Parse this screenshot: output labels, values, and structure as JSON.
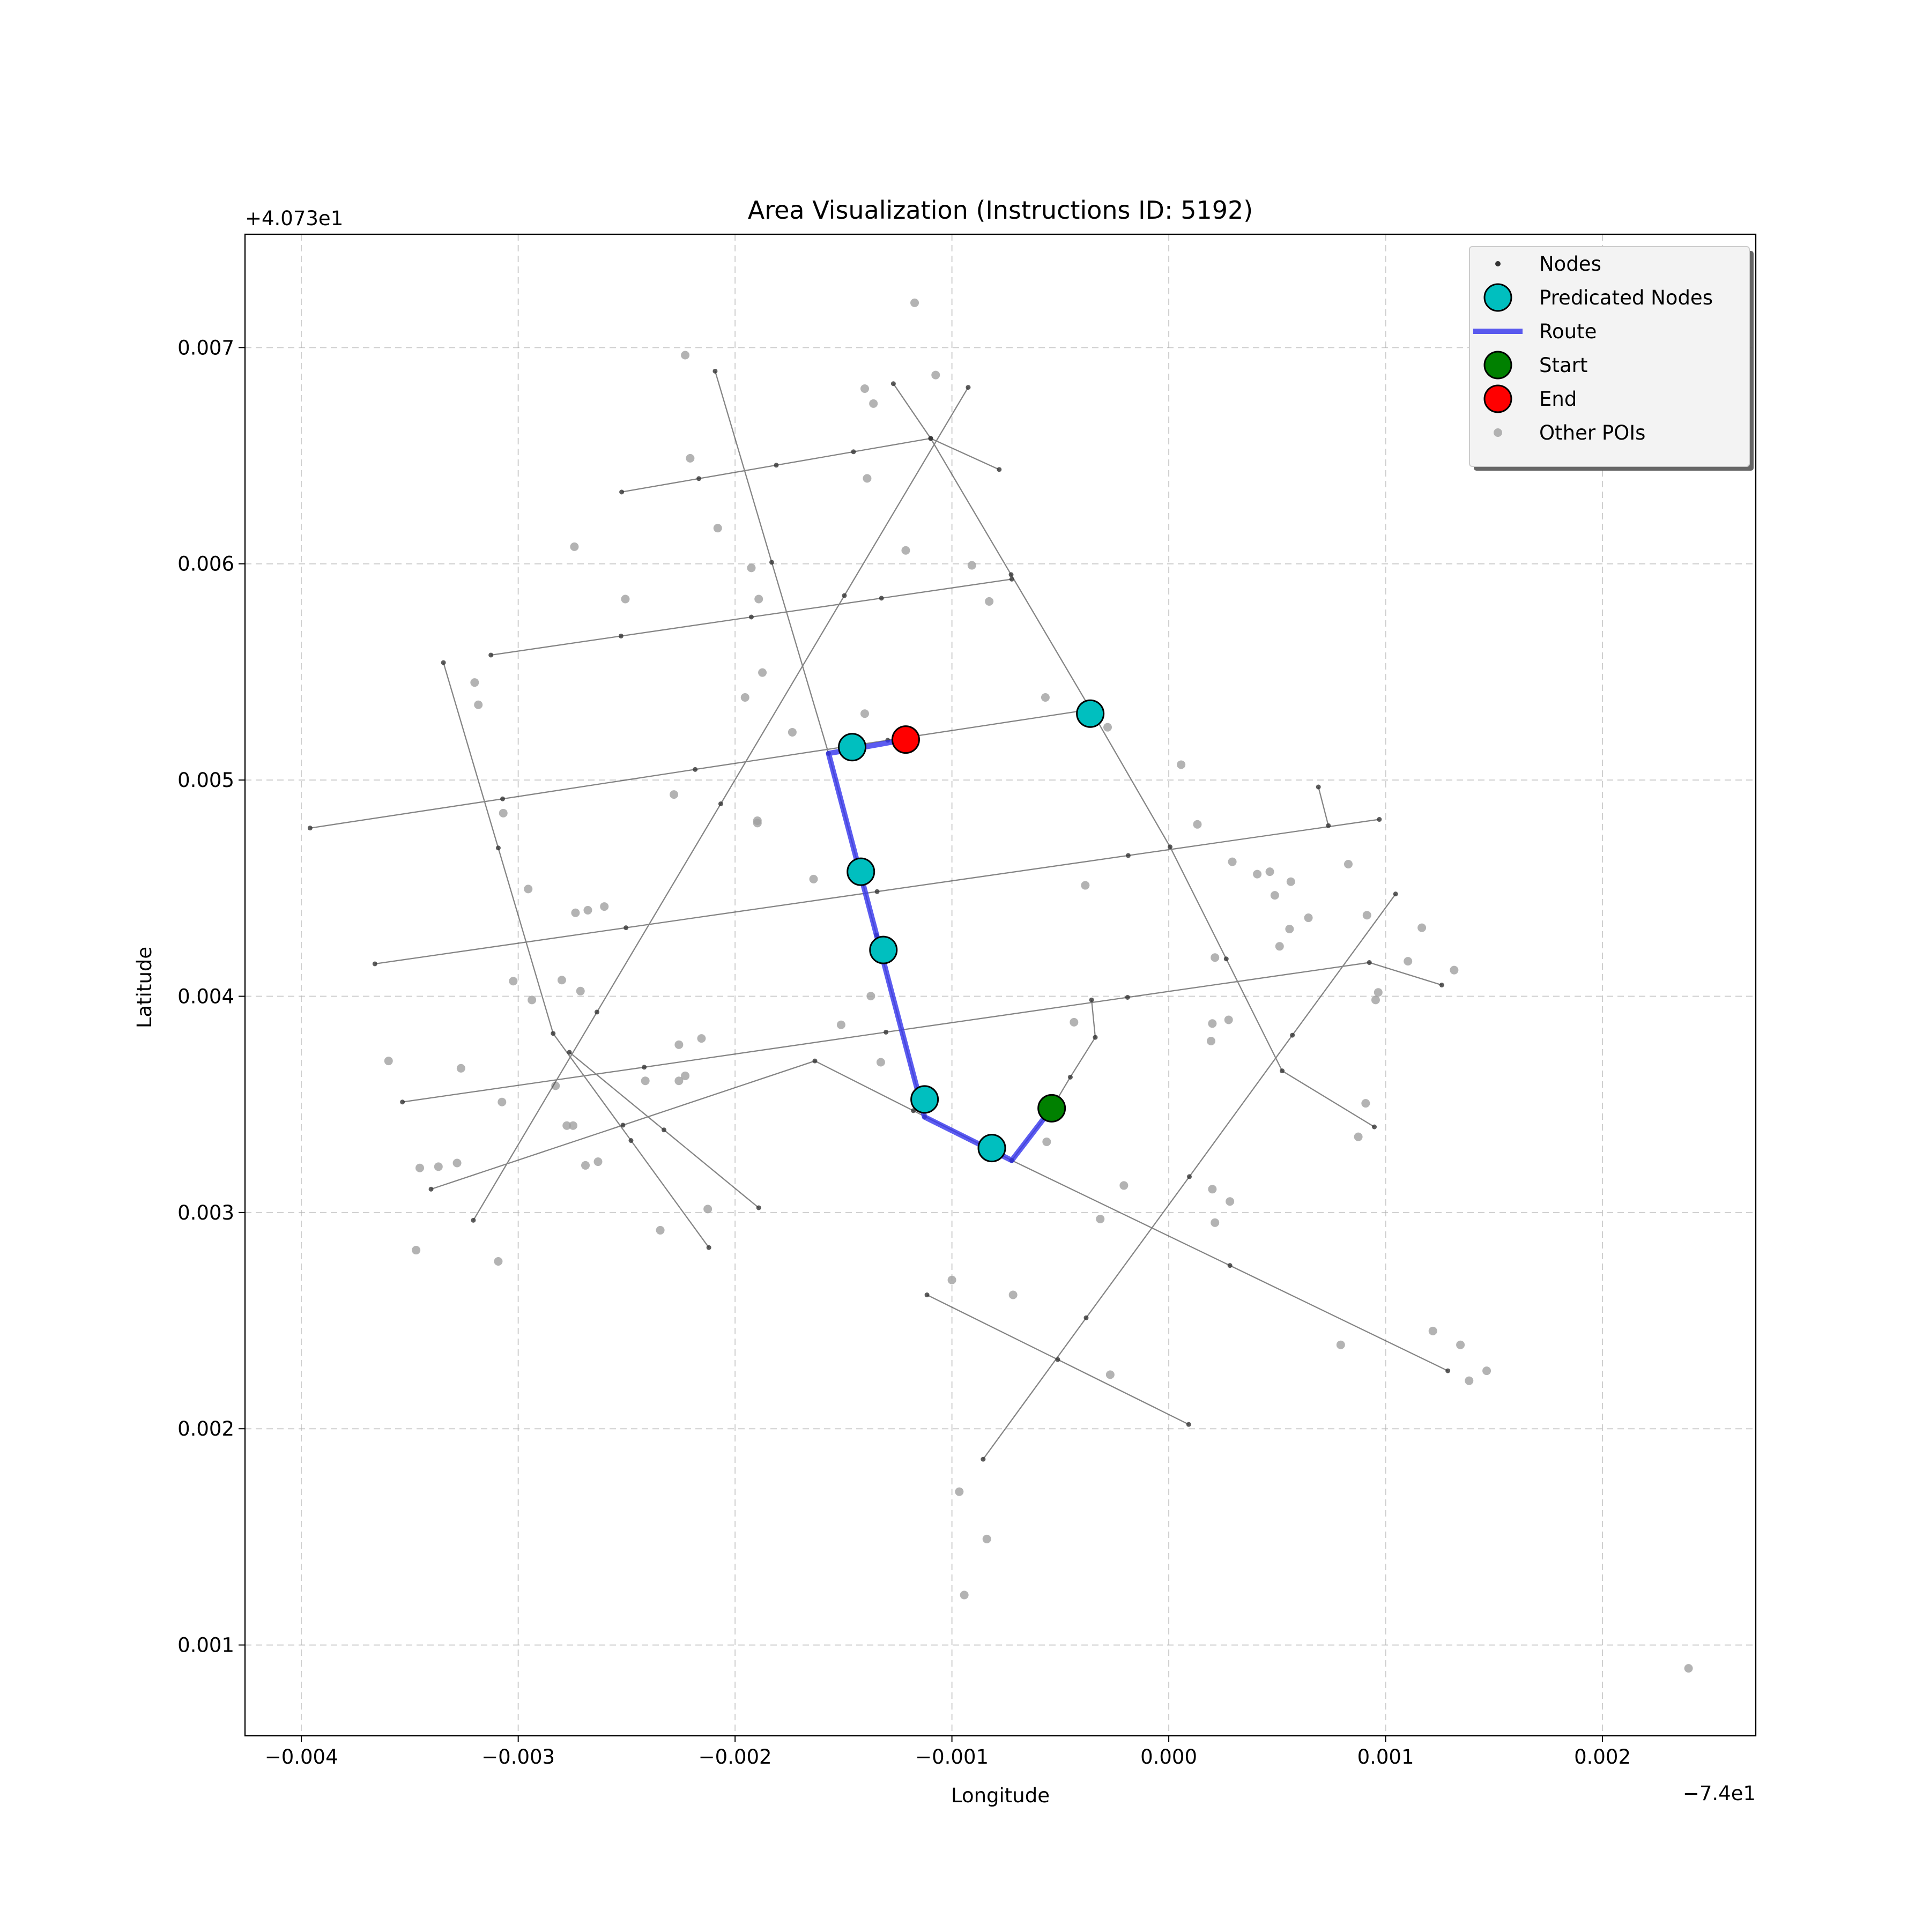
{
  "chart_data": {
    "type": "scatter",
    "title": "Area Visualization (Instructions ID: 5192)",
    "x_label": "Longitude",
    "y_label": "Latitude",
    "x_offset_label": "−7.4e1",
    "y_offset_label": "+4.073e1",
    "xlim": [
      -0.00426,
      0.002707
    ],
    "ylim": [
      0.00058,
      0.007524
    ],
    "xticks": [
      {
        "value": -0.004,
        "label": "−0.004"
      },
      {
        "value": -0.003,
        "label": "−0.003"
      },
      {
        "value": -0.002,
        "label": "−0.002"
      },
      {
        "value": -0.001,
        "label": "−0.001"
      },
      {
        "value": 0,
        "label": "0.000"
      },
      {
        "value": 0.001,
        "label": "0.001"
      },
      {
        "value": 0.002,
        "label": "0.002"
      }
    ],
    "yticks": [
      0.001,
      0.002,
      0.003,
      0.004,
      0.005,
      0.006,
      0.007
    ],
    "grid": true,
    "legend": "upper right",
    "series": [
      {
        "name": "Nodes",
        "style": "network",
        "color": "#333333",
        "x": [
          -0.002523,
          -0.002167,
          -0.00181,
          -0.001454,
          -0.001098,
          -0.000782,
          null,
          -0.003126,
          -0.002526,
          -0.001925,
          -0.001325,
          -0.000724,
          null,
          -0.00396,
          -0.003072,
          -0.002184,
          -0.001296,
          -0.000408,
          null,
          -0.003661,
          -0.002503,
          -0.001345,
          -0.000187,
          0.000971,
          null,
          -0.003534,
          -0.002419,
          -0.001304,
          -0.00019,
          0.000925,
          0.001259,
          null,
          -0.003402,
          -0.002517,
          -0.001632,
          -0.001178,
          -0.000724,
          0.000282,
          0.001287,
          null,
          -0.003207,
          -0.002637,
          -0.002066,
          -0.001496,
          -0.000925,
          null,
          -0.003345,
          -0.003092,
          -0.002839,
          -0.00248,
          -0.002121,
          null,
          -0.002764,
          -0.002328,
          -0.001891,
          null,
          -0.002092,
          -0.001831,
          -0.001569,
          -0.001348,
          -0.001126,
          null,
          -0.00127,
          -0.001098,
          -0.000727,
          -0.000356,
          6e-06,
          0.000265,
          0.000523,
          0.000948,
          null,
          -0.000856,
          -0.000381,
          9.5e-05,
          0.00057,
          0.001046,
          null,
          -0.001115,
          -0.000512,
          9.2e-05,
          null,
          -0.000356,
          -0.000339,
          -0.000454,
          -0.00054,
          -0.000724,
          null,
          0.00069,
          0.000736
        ],
        "y": [
          0.006332,
          0.006394,
          0.006456,
          0.006518,
          0.00658,
          0.006436,
          null,
          0.005578,
          0.005666,
          0.005754,
          0.005841,
          0.005929,
          null,
          0.004778,
          0.004913,
          0.005049,
          0.005184,
          0.005319,
          null,
          0.00415,
          0.004317,
          0.004484,
          0.004651,
          0.004818,
          null,
          0.003511,
          0.003672,
          0.003834,
          0.003995,
          0.004156,
          0.004052,
          null,
          0.003108,
          0.003404,
          0.003701,
          0.003471,
          0.003241,
          0.002755,
          0.002268,
          null,
          0.002964,
          0.003927,
          0.00489,
          0.005853,
          0.006816,
          null,
          0.005543,
          0.004686,
          0.003828,
          0.003333,
          0.002838,
          null,
          0.003741,
          0.003382,
          0.003022,
          null,
          0.006891,
          0.006007,
          0.005123,
          0.004283,
          0.003442,
          null,
          0.006833,
          0.00658,
          0.00595,
          0.005319,
          0.004691,
          0.004173,
          0.003655,
          0.003396,
          null,
          0.001859,
          0.002513,
          0.003166,
          0.00382,
          0.004473,
          null,
          0.002619,
          0.00232,
          0.00202,
          null,
          0.003983,
          0.00381,
          0.003626,
          0.003482,
          0.003241,
          null,
          0.004968,
          0.004789
        ]
      },
      {
        "name": "Predicated Nodes",
        "style": "circle",
        "color": "#00bfbf",
        "x": [
          -0.00146,
          -0.00142,
          -0.001316,
          -0.001126,
          -0.000816,
          -0.000362
        ],
        "y": [
          0.005152,
          0.004576,
          0.004214,
          0.003523,
          0.003298,
          0.005307
        ]
      },
      {
        "name": "Route",
        "style": "line",
        "color": "#3333ee",
        "x": [
          -0.00054,
          -0.000724,
          -0.001126,
          -0.001569,
          -0.001213
        ],
        "y": [
          0.003482,
          0.003241,
          0.003442,
          0.005123,
          0.005187
        ]
      },
      {
        "name": "Start",
        "style": "circle",
        "color": "#008000",
        "x": [
          -0.00054
        ],
        "y": [
          0.003482
        ]
      },
      {
        "name": "End",
        "style": "circle",
        "color": "#ff0000",
        "x": [
          -0.001213
        ],
        "y": [
          0.005187
        ]
      },
      {
        "name": "Other POIs",
        "style": "dot",
        "color": "#a0a0a0",
        "x": [
          -0.001172,
          -0.00223,
          -0.001402,
          -0.001362,
          -0.001075,
          -0.002207,
          -0.001391,
          -0.002741,
          -0.00208,
          -0.001213,
          -0.000908,
          -0.002506,
          -0.001925,
          -0.001891,
          -0.000828,
          -0.003201,
          -0.003184,
          -0.001874,
          -0.001954,
          -0.000569,
          -0.001402,
          -0.000282,
          5.7e-05,
          -0.002282,
          -0.003069,
          -0.001897,
          -0.001897,
          -0.001736,
          0.000132,
          0.000293,
          0.000466,
          0.000408,
          0.000828,
          0.000563,
          0.000489,
          0.000557,
          0.000644,
          0.000511,
          -0.000385,
          -0.001638,
          -0.002954,
          -0.002603,
          -0.002736,
          -0.002679,
          0.000914,
          0.001167,
          0.000213,
          0.001103,
          0.001316,
          0.000966,
          0.000954,
          -0.003023,
          -0.002937,
          -0.002799,
          -0.002713,
          -0.001374,
          -0.000437,
          0.000276,
          0.000201,
          0.000195,
          -0.001511,
          -0.002155,
          -0.002259,
          -0.001328,
          -0.003598,
          -0.003264,
          -0.00223,
          -0.002414,
          -0.002259,
          -0.002828,
          -0.003075,
          0.000908,
          -0.002776,
          -0.002747,
          0.000874,
          -0.000563,
          -0.00269,
          -0.002632,
          -0.003454,
          -0.003368,
          -0.003282,
          -0.000207,
          0.000201,
          0.000282,
          -0.002126,
          -0.000316,
          0.000213,
          -0.002345,
          -0.003471,
          -0.003092,
          -0.001,
          -0.000718,
          0.001218,
          0.001345,
          0.000793,
          0.001466,
          0.001385,
          -0.00027,
          -0.000966,
          -0.000839,
          -0.000943,
          0.002397
        ],
        "y": [
          0.007207,
          0.006965,
          0.00681,
          0.006741,
          0.006873,
          0.006488,
          0.006395,
          0.006079,
          0.006165,
          0.006062,
          0.005993,
          0.005837,
          0.005981,
          0.005837,
          0.005826,
          0.005451,
          0.005348,
          0.005497,
          0.005382,
          0.005382,
          0.005307,
          0.005244,
          0.005071,
          0.004933,
          0.004847,
          0.004812,
          0.004801,
          0.005221,
          0.004795,
          0.004622,
          0.004576,
          0.004565,
          0.004611,
          0.00453,
          0.004467,
          0.004311,
          0.004363,
          0.004231,
          0.004513,
          0.004542,
          0.004496,
          0.004415,
          0.004386,
          0.004398,
          0.004375,
          0.004317,
          0.004179,
          0.004162,
          0.004121,
          0.004018,
          0.003983,
          0.00407,
          0.003983,
          0.004075,
          0.004024,
          0.004001,
          0.00388,
          0.003891,
          0.003874,
          0.003793,
          0.003868,
          0.003805,
          0.003776,
          0.003695,
          0.003701,
          0.003667,
          0.003632,
          0.003609,
          0.003609,
          0.003586,
          0.003511,
          0.003505,
          0.003402,
          0.003402,
          0.00335,
          0.003327,
          0.003218,
          0.003235,
          0.003206,
          0.003212,
          0.003229,
          0.003125,
          0.003108,
          0.003051,
          0.003016,
          0.00297,
          0.002953,
          0.002918,
          0.002826,
          0.002774,
          0.002688,
          0.002619,
          0.002452,
          0.002388,
          0.002388,
          0.002268,
          0.002222,
          0.00225,
          0.001709,
          0.00149,
          0.001231,
          0.000892
        ]
      }
    ]
  }
}
